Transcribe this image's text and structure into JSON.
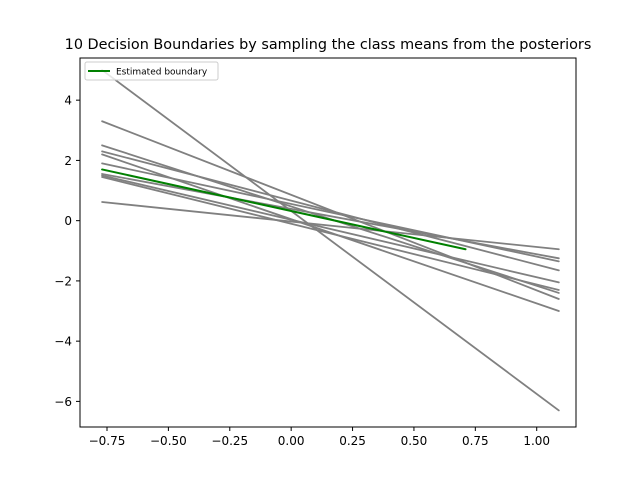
{
  "chart_data": {
    "type": "line",
    "title": "10 Decision Boundaries by sampling the class means from the posteriors",
    "xlabel": "",
    "ylabel": "",
    "xlim": [
      -0.86,
      1.16
    ],
    "ylim": [
      -6.85,
      5.4
    ],
    "xticks": [
      -0.75,
      -0.5,
      -0.25,
      0.0,
      0.25,
      0.5,
      0.75,
      1.0
    ],
    "xtick_labels": [
      "−0.75",
      "−0.50",
      "−0.25",
      "0.00",
      "0.25",
      "0.50",
      "0.75",
      "1.00"
    ],
    "yticks": [
      -6,
      -4,
      -2,
      0,
      2,
      4
    ],
    "ytick_labels": [
      "−6",
      "−4",
      "−2",
      "0",
      "2",
      "4"
    ],
    "grid": false,
    "legend": {
      "position": "top-left",
      "entries": [
        {
          "label": "Estimated boundary",
          "color": "#008000"
        }
      ]
    },
    "sample_color": "#808080",
    "sample_lines": [
      {
        "x": [
          -0.77,
          1.09
        ],
        "y": [
          5.0,
          -6.3
        ]
      },
      {
        "x": [
          -0.77,
          1.09
        ],
        "y": [
          3.3,
          -2.6
        ]
      },
      {
        "x": [
          -0.77,
          1.09
        ],
        "y": [
          2.5,
          -2.4
        ]
      },
      {
        "x": [
          -0.77,
          1.09
        ],
        "y": [
          2.3,
          -1.65
        ]
      },
      {
        "x": [
          -0.77,
          1.09
        ],
        "y": [
          2.2,
          -3.0
        ]
      },
      {
        "x": [
          -0.77,
          1.09
        ],
        "y": [
          1.9,
          -1.35
        ]
      },
      {
        "x": [
          -0.77,
          1.09
        ],
        "y": [
          1.55,
          -1.25
        ]
      },
      {
        "x": [
          -0.77,
          1.09
        ],
        "y": [
          1.5,
          -2.05
        ]
      },
      {
        "x": [
          -0.77,
          1.09
        ],
        "y": [
          1.45,
          -2.3
        ]
      },
      {
        "x": [
          -0.77,
          1.09
        ],
        "y": [
          0.62,
          -0.95
        ]
      }
    ],
    "series": [
      {
        "name": "Estimated boundary",
        "color": "#008000",
        "x": [
          -0.77,
          0.71
        ],
        "y": [
          1.7,
          -0.95
        ]
      }
    ]
  }
}
